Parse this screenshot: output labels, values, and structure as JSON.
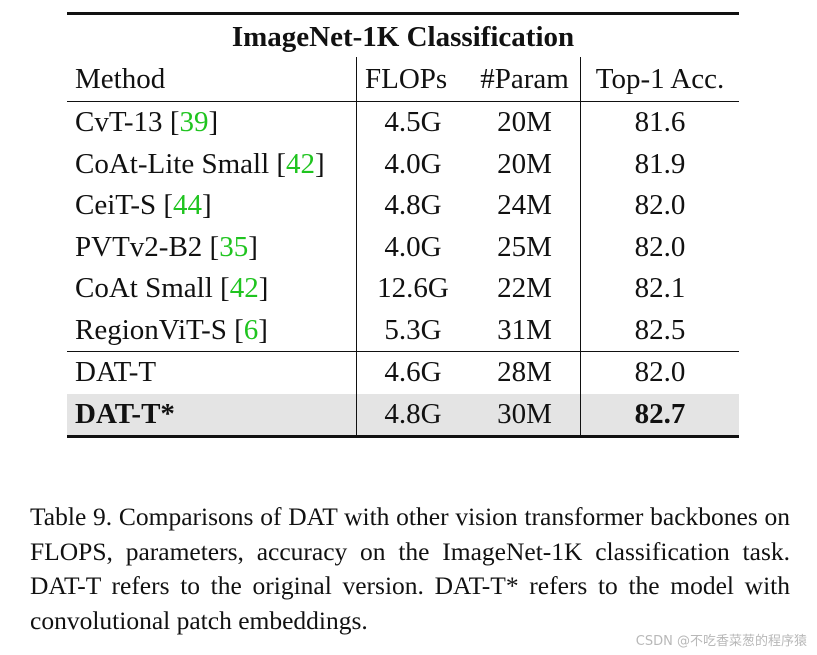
{
  "table": {
    "title": "ImageNet-1K Classification",
    "headers": [
      "Method",
      "FLOPs",
      "#Param",
      "Top-1 Acc."
    ],
    "rows": [
      {
        "method": "CvT-13",
        "cite": "39",
        "flops": "4.5G",
        "params": "20M",
        "acc": "81.6"
      },
      {
        "method": "CoAt-Lite Small",
        "cite": "42",
        "flops": "4.0G",
        "params": "20M",
        "acc": "81.9"
      },
      {
        "method": "CeiT-S",
        "cite": "44",
        "flops": "4.8G",
        "params": "24M",
        "acc": "82.0"
      },
      {
        "method": "PVTv2-B2",
        "cite": "35",
        "flops": "4.0G",
        "params": "25M",
        "acc": "82.0"
      },
      {
        "method": "CoAt Small",
        "cite": "42",
        "flops": "12.6G",
        "params": "22M",
        "acc": "82.1"
      },
      {
        "method": "RegionViT-S",
        "cite": "6",
        "flops": "5.3G",
        "params": "31M",
        "acc": "82.5"
      },
      {
        "method": "DAT-T",
        "cite": "",
        "flops": "4.6G",
        "params": "28M",
        "acc": "82.0"
      },
      {
        "method": "DAT-T*",
        "cite": "",
        "flops": "4.8G",
        "params": "30M",
        "acc": "82.7"
      }
    ]
  },
  "caption": "Table 9. Comparisons of DAT with other vision transformer backbones on FLOPS, parameters, accuracy on the ImageNet-1K classification task. DAT-T refers to the original version. DAT-T* refers to the model with convolutional patch embeddings.",
  "watermark": "CSDN @不吃香菜葱的程序猿"
}
